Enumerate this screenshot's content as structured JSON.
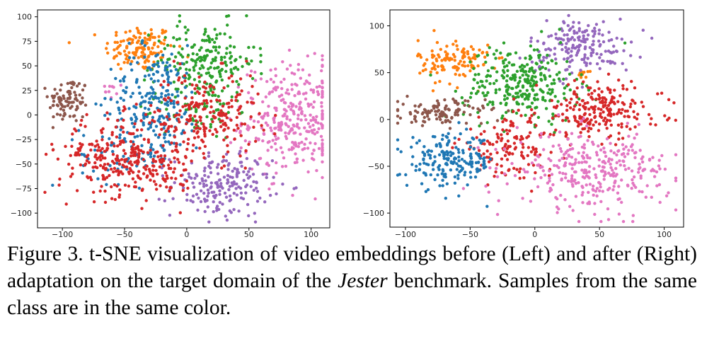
{
  "colors": {
    "blue": "#1f77b4",
    "orange": "#ff7f0e",
    "green": "#2ca02c",
    "red": "#d62728",
    "purple": "#9467bd",
    "brown": "#8c564b",
    "pink": "#e377c2"
  },
  "chart_data": [
    {
      "type": "scatter",
      "panel": "left",
      "title": "",
      "xlabel": "",
      "ylabel": "",
      "xlim": [
        -120,
        115
      ],
      "ylim": [
        -115,
        107
      ],
      "xticks": [
        -100,
        -50,
        0,
        50,
        100
      ],
      "yticks": [
        -100,
        -75,
        -50,
        -25,
        0,
        25,
        50,
        75,
        100
      ],
      "grid": false,
      "legend": false,
      "series": [
        {
          "color": "orange",
          "clusters": [
            {
              "x": -38,
              "y": 68,
              "sx": 14,
              "sy": 12,
              "n": 130
            }
          ]
        },
        {
          "color": "brown",
          "clusters": [
            {
              "x": -95,
              "y": 15,
              "sx": 8,
              "sy": 12,
              "n": 90
            }
          ]
        },
        {
          "color": "pink",
          "clusters": [
            {
              "x": 85,
              "y": -5,
              "sx": 20,
              "sy": 28,
              "n": 320
            },
            {
              "x": -62,
              "y": 25,
              "sx": 3,
              "sy": 4,
              "n": 10
            }
          ]
        },
        {
          "color": "purple",
          "clusters": [
            {
              "x": 28,
              "y": -72,
              "sx": 20,
              "sy": 16,
              "n": 190
            }
          ]
        },
        {
          "color": "green",
          "clusters": [
            {
              "x": 15,
              "y": 55,
              "sx": 20,
              "sy": 20,
              "n": 200
            },
            {
              "x": 10,
              "y": 5,
              "sx": 15,
              "sy": 15,
              "n": 60
            }
          ]
        },
        {
          "color": "blue",
          "clusters": [
            {
              "x": -25,
              "y": 15,
              "sx": 18,
              "sy": 28,
              "n": 220
            },
            {
              "x": -50,
              "y": -40,
              "sx": 18,
              "sy": 15,
              "n": 60
            }
          ]
        },
        {
          "color": "red",
          "clusters": [
            {
              "x": -55,
              "y": -42,
              "sx": 24,
              "sy": 20,
              "n": 260
            },
            {
              "x": 15,
              "y": 0,
              "sx": 22,
              "sy": 22,
              "n": 220
            },
            {
              "x": -20,
              "y": -60,
              "sx": 12,
              "sy": 10,
              "n": 50
            }
          ]
        }
      ]
    },
    {
      "type": "scatter",
      "panel": "right",
      "title": "",
      "xlabel": "",
      "ylabel": "",
      "xlim": [
        -112,
        115
      ],
      "ylim": [
        -115,
        117
      ],
      "xticks": [
        -100,
        -50,
        0,
        50,
        100
      ],
      "yticks": [
        -100,
        -50,
        0,
        50,
        100
      ],
      "grid": false,
      "legend": false,
      "series": [
        {
          "color": "orange",
          "clusters": [
            {
              "x": -62,
              "y": 62,
              "sx": 14,
              "sy": 12,
              "n": 120
            },
            {
              "x": 37,
              "y": 49,
              "sx": 2,
              "sy": 2,
              "n": 10
            }
          ]
        },
        {
          "color": "purple",
          "clusters": [
            {
              "x": 35,
              "y": 78,
              "sx": 20,
              "sy": 15,
              "n": 180
            }
          ]
        },
        {
          "color": "green",
          "clusters": [
            {
              "x": -10,
              "y": 38,
              "sx": 22,
              "sy": 20,
              "n": 280
            }
          ]
        },
        {
          "color": "brown",
          "clusters": [
            {
              "x": -72,
              "y": 8,
              "sx": 17,
              "sy": 7,
              "n": 110
            }
          ]
        },
        {
          "color": "red",
          "clusters": [
            {
              "x": 50,
              "y": 10,
              "sx": 24,
              "sy": 15,
              "n": 220
            },
            {
              "x": -20,
              "y": -30,
              "sx": 20,
              "sy": 15,
              "n": 140
            }
          ]
        },
        {
          "color": "blue",
          "clusters": [
            {
              "x": -65,
              "y": -45,
              "sx": 17,
              "sy": 14,
              "n": 190
            }
          ]
        },
        {
          "color": "pink",
          "clusters": [
            {
              "x": 45,
              "y": -55,
              "sx": 30,
              "sy": 20,
              "n": 320
            }
          ]
        }
      ]
    }
  ],
  "caption": {
    "part1": "Figure 3.  t-SNE visualization of video embeddings before (Left) and after (Right) adaptation on the target domain of the ",
    "italic": "Jester",
    "part2": " benchmark. Samples from the same class are in the same color."
  }
}
